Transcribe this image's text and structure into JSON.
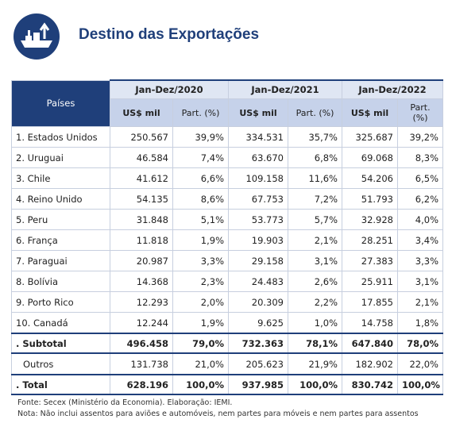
{
  "header": {
    "title": "Destino das Exportações"
  },
  "table": {
    "corner": "Países",
    "periods": [
      "Jan-Dez/2020",
      "Jan-Dez/2021",
      "Jan-Dez/2022"
    ],
    "subheaders": [
      "US$ mil",
      "Part. (%)"
    ],
    "rows": [
      [
        "1. Estados Unidos",
        "250.567",
        "39,9%",
        "334.531",
        "35,7%",
        "325.687",
        "39,2%"
      ],
      [
        "2. Uruguai",
        "46.584",
        "7,4%",
        "63.670",
        "6,8%",
        "69.068",
        "8,3%"
      ],
      [
        "3. Chile",
        "41.612",
        "6,6%",
        "109.158",
        "11,6%",
        "54.206",
        "6,5%"
      ],
      [
        "4. Reino Unido",
        "54.135",
        "8,6%",
        "67.753",
        "7,2%",
        "51.793",
        "6,2%"
      ],
      [
        "5. Peru",
        "31.848",
        "5,1%",
        "53.773",
        "5,7%",
        "32.928",
        "4,0%"
      ],
      [
        "6. França",
        "11.818",
        "1,9%",
        "19.903",
        "2,1%",
        "28.251",
        "3,4%"
      ],
      [
        "7. Paraguai",
        "20.987",
        "3,3%",
        "29.158",
        "3,1%",
        "27.383",
        "3,3%"
      ],
      [
        "8. Bolívia",
        "14.368",
        "2,3%",
        "24.483",
        "2,6%",
        "25.911",
        "3,1%"
      ],
      [
        "9. Porto Rico",
        "12.293",
        "2,0%",
        "20.309",
        "2,2%",
        "17.855",
        "2,1%"
      ],
      [
        "10. Canadá",
        "12.244",
        "1,9%",
        "9.625",
        "1,0%",
        "14.758",
        "1,8%"
      ],
      [
        ". Subtotal",
        "496.458",
        "79,0%",
        "732.363",
        "78,1%",
        "647.840",
        "78,0%"
      ],
      [
        "Outros",
        "131.738",
        "21,0%",
        "205.623",
        "21,9%",
        "182.902",
        "22,0%"
      ],
      [
        ". Total",
        "628.196",
        "100,0%",
        "937.985",
        "100,0%",
        "830.742",
        "100,0%"
      ]
    ]
  },
  "notes": [
    "Fonte: Secex (Ministério da Economia). Elaboração: IEMI.",
    "Nota: Não inclui assentos para aviões e automóveis, nem partes para móveis e nem partes para assentos"
  ]
}
